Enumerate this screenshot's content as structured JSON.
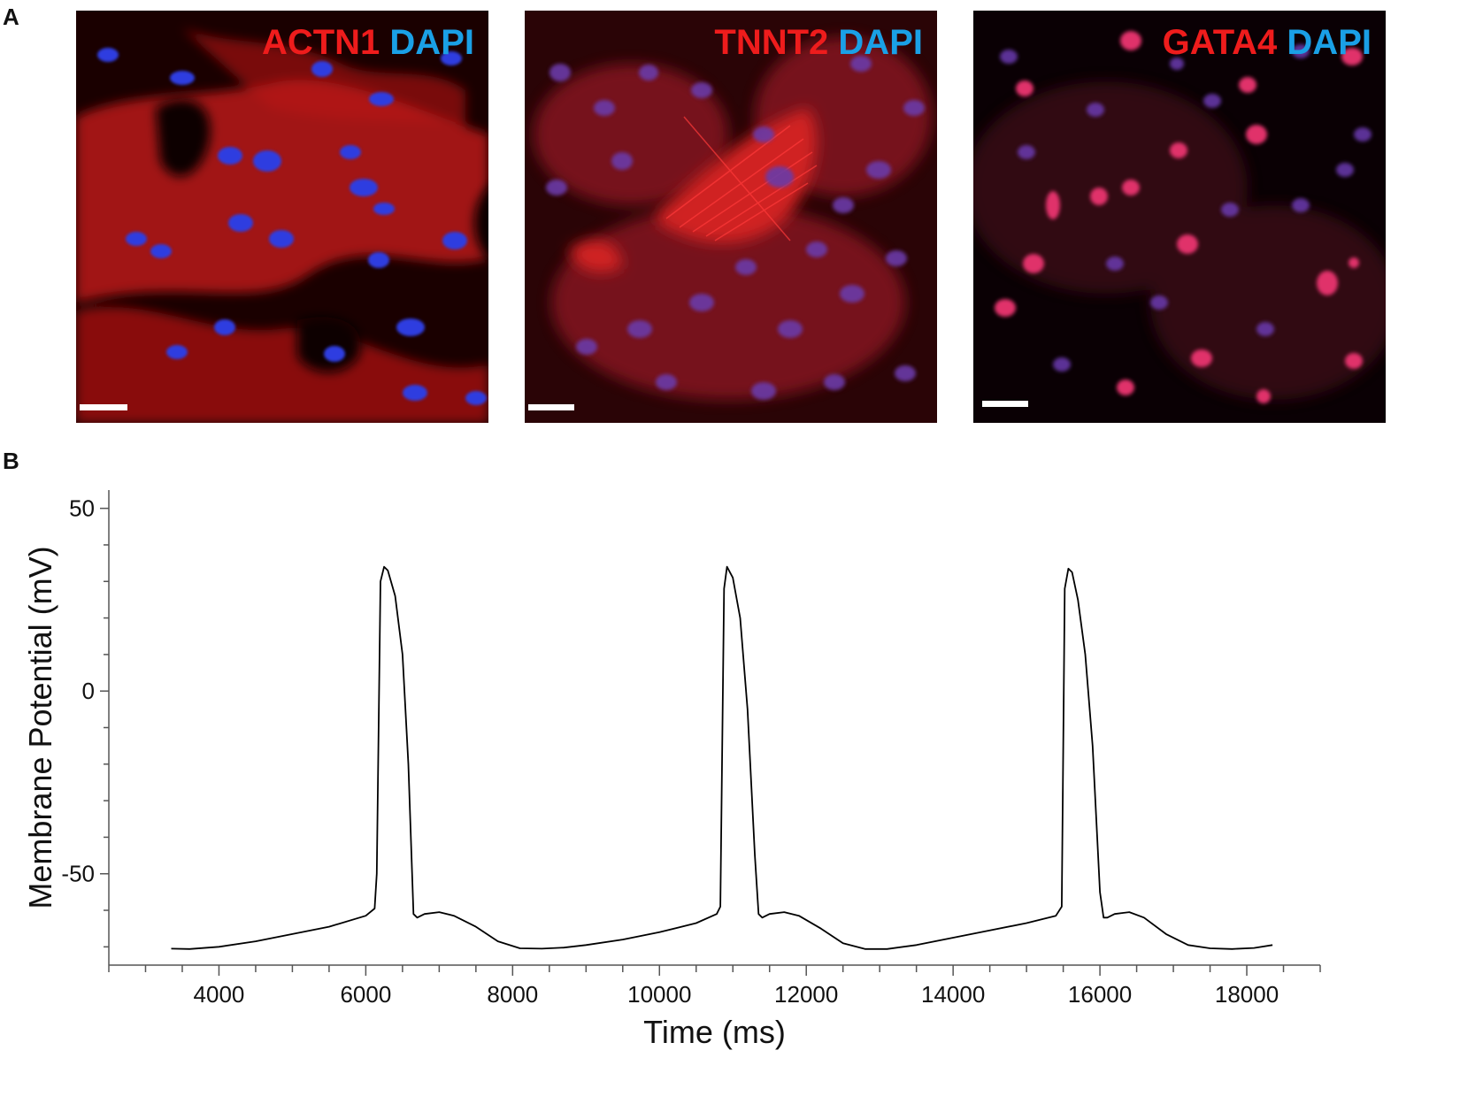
{
  "panel_a": {
    "letter": "A",
    "images": [
      {
        "stain": "ACTN1",
        "counter": "DAPI",
        "stain_color": "#ee1c1c",
        "counter_color": "#1aa0e6"
      },
      {
        "stain": "TNNT2",
        "counter": "DAPI",
        "stain_color": "#ee1c1c",
        "counter_color": "#1aa0e6"
      },
      {
        "stain": "GATA4",
        "counter": "DAPI",
        "stain_color": "#ee1c1c",
        "counter_color": "#1aa0e6"
      }
    ]
  },
  "panel_b": {
    "letter": "B"
  },
  "chart_data": {
    "type": "line",
    "title": "",
    "xlabel": "Time (ms)",
    "ylabel": "Membrane Potential (mV)",
    "xlim": [
      2500,
      19000
    ],
    "ylim": [
      -75,
      55
    ],
    "xticks": [
      4000,
      6000,
      8000,
      10000,
      12000,
      14000,
      16000,
      18000
    ],
    "yticks": [
      50,
      0,
      -50
    ],
    "grid": false,
    "legend": "none",
    "line_color": "#000000",
    "series": [
      {
        "x": [
          3350,
          3600,
          4000,
          4500,
          5000,
          5500,
          6000,
          6120,
          6150,
          6200,
          6250,
          6300,
          6400,
          6500,
          6580,
          6650,
          6700,
          6800,
          7000,
          7200,
          7500,
          7800,
          8100,
          8400,
          8700,
          9000,
          9500,
          10000,
          10500,
          10780,
          10830,
          10880,
          10920,
          11000,
          11100,
          11200,
          11300,
          11350,
          11400,
          11500,
          11700,
          11900,
          12200,
          12500,
          12800,
          13100,
          13500,
          14000,
          14500,
          15000,
          15400,
          15480,
          15520,
          15570,
          15620,
          15700,
          15800,
          15900,
          16000,
          16050,
          16100,
          16200,
          16400,
          16600,
          16900,
          17200,
          17500,
          17800,
          18100,
          18350
        ],
        "y": [
          -70.5,
          -70.6,
          -70,
          -68.5,
          -66.5,
          -64.5,
          -61.5,
          -59.5,
          -50,
          30,
          34,
          33,
          26,
          10,
          -20,
          -61,
          -62,
          -61,
          -60.5,
          -61.5,
          -64.5,
          -68.5,
          -70.4,
          -70.5,
          -70.2,
          -69.5,
          -68,
          -66,
          -63.5,
          -61,
          -59,
          28,
          34,
          31,
          20,
          -5,
          -45,
          -61,
          -62,
          -61,
          -60.5,
          -61.5,
          -65,
          -69,
          -70.6,
          -70.6,
          -69.5,
          -67.5,
          -65.5,
          -63.5,
          -61.5,
          -59,
          28,
          33.5,
          32.5,
          25,
          10,
          -15,
          -55,
          -62,
          -62,
          -61,
          -60.5,
          -62,
          -66.5,
          -69.5,
          -70.4,
          -70.6,
          -70.3,
          -69.5
        ]
      }
    ]
  }
}
